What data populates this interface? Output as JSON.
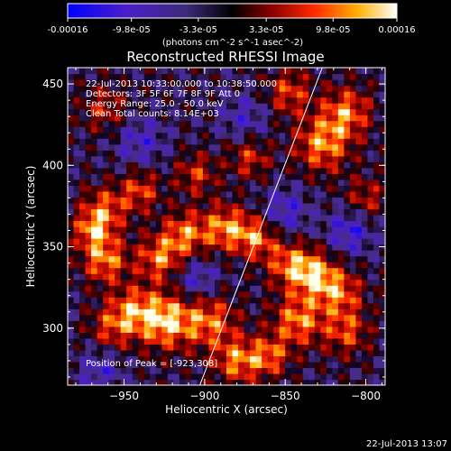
{
  "colorbar": {
    "tick_labels": [
      "-0.00016",
      "-9.8e-05",
      "-3.3e-05",
      "3.3e-05",
      "9.8e-05",
      "0.00016"
    ],
    "unit_label": "(photons cm^-2 s^-1 asec^-2)",
    "range": [
      -0.00016,
      0.00016
    ]
  },
  "chart_data": {
    "type": "heatmap",
    "title": "Reconstructed RHESSI Image",
    "xlabel": "Heliocentric X (arcsec)",
    "ylabel": "Heliocentric Y (arcsec)",
    "xlim": [
      -985,
      -788
    ],
    "ylim": [
      265,
      460
    ],
    "x_ticks": [
      -950,
      -900,
      -850,
      -800
    ],
    "y_ticks": [
      300,
      350,
      400,
      450
    ],
    "annotations": [
      "22-Jul-2013 10:33:00.000 to 10:38:50.000",
      "Detectors: 3F 5F 6F 7F 8F 9F Att 0",
      "Energy Range: 25.0 - 50.0 keV",
      "Clean     Total counts: 8.14E+03"
    ],
    "peak_label": "Position of Peak = [-923,308]",
    "peak": {
      "x": -923,
      "y": 308
    },
    "limb_line": [
      {
        "x": -903,
        "y": 265
      },
      {
        "x": -827,
        "y": 460
      }
    ],
    "hotspots": [
      {
        "x": -925,
        "y": 305,
        "v": 0.00016,
        "s": 12
      },
      {
        "x": -897,
        "y": 305,
        "v": 0.00012,
        "s": 12
      },
      {
        "x": -945,
        "y": 312,
        "v": 0.0001,
        "s": 10
      },
      {
        "x": -962,
        "y": 342,
        "v": 0.00013,
        "s": 10
      },
      {
        "x": -962,
        "y": 373,
        "v": 0.00011,
        "s": 10
      },
      {
        "x": -928,
        "y": 343,
        "v": 0.00012,
        "s": 10
      },
      {
        "x": -912,
        "y": 358,
        "v": 0.00012,
        "s": 10
      },
      {
        "x": -887,
        "y": 362,
        "v": 0.00013,
        "s": 10
      },
      {
        "x": -868,
        "y": 356,
        "v": 0.00012,
        "s": 9
      },
      {
        "x": -848,
        "y": 340,
        "v": 0.00011,
        "s": 10
      },
      {
        "x": -832,
        "y": 333,
        "v": 0.00014,
        "s": 10
      },
      {
        "x": -816,
        "y": 322,
        "v": 0.00011,
        "s": 10
      },
      {
        "x": -842,
        "y": 305,
        "v": 0.00013,
        "s": 11
      },
      {
        "x": -812,
        "y": 298,
        "v": 0.0001,
        "s": 10
      },
      {
        "x": -880,
        "y": 280,
        "v": 0.00012,
        "s": 10
      },
      {
        "x": -860,
        "y": 283,
        "v": 0.00011,
        "s": 9
      },
      {
        "x": -827,
        "y": 413,
        "v": 0.00013,
        "s": 12
      },
      {
        "x": -812,
        "y": 433,
        "v": 0.00012,
        "s": 11
      },
      {
        "x": -848,
        "y": 445,
        "v": 0.0001,
        "s": 10
      },
      {
        "x": -940,
        "y": 385,
        "v": 0.0001,
        "s": 9
      },
      {
        "x": -905,
        "y": 395,
        "v": 9e-05,
        "s": 9
      },
      {
        "x": -872,
        "y": 405,
        "v": 9e-05,
        "s": 9
      },
      {
        "x": -962,
        "y": 435,
        "v": 8e-05,
        "s": 10
      },
      {
        "x": -958,
        "y": 300,
        "v": 9e-05,
        "s": 10
      },
      {
        "x": -970,
        "y": 360,
        "v": 0.00011,
        "s": 8
      },
      {
        "x": -800,
        "y": 380,
        "v": 8e-05,
        "s": 9
      },
      {
        "x": -850,
        "y": 372,
        "v": -8e-05,
        "s": 10
      },
      {
        "x": -905,
        "y": 330,
        "v": -8e-05,
        "s": 10
      },
      {
        "x": -940,
        "y": 415,
        "v": -7e-05,
        "s": 11
      },
      {
        "x": -810,
        "y": 360,
        "v": -9e-05,
        "s": 10
      },
      {
        "x": -875,
        "y": 430,
        "v": -6e-05,
        "s": 11
      },
      {
        "x": -965,
        "y": 275,
        "v": -7e-05,
        "s": 10
      }
    ]
  },
  "timestamp": "22-Jul-2013 13:07"
}
